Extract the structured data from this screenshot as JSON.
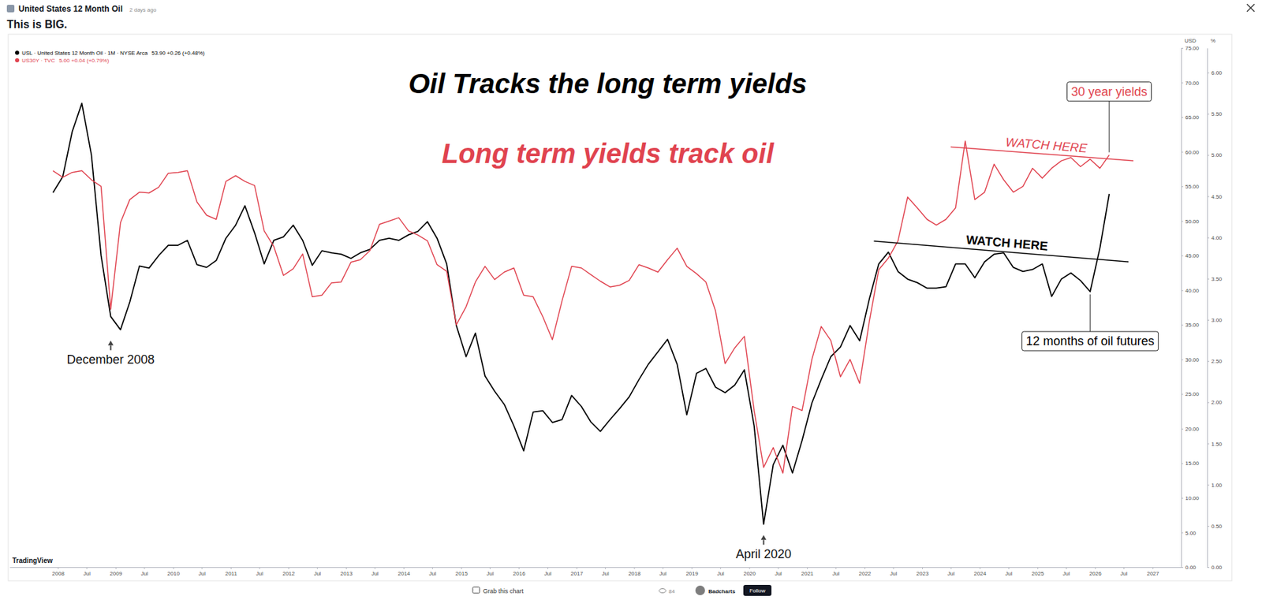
{
  "page": {
    "source": "United States 12 Month Oil",
    "age": "2 days ago",
    "post_title": "This is BIG.",
    "watermark": "TradingView",
    "toolbar_action": "Grab this chart",
    "views": 84,
    "author": "Badcharts",
    "follow": "Follow"
  },
  "chart_data": {
    "type": "line",
    "title": "Oil Tracks the long term yields",
    "subtitle": "Long term yields track oil",
    "x": [
      "2007-12",
      "2008-02",
      "2008-04",
      "2008-06",
      "2008-08",
      "2008-10",
      "2008-12",
      "2009-02",
      "2009-04",
      "2009-06",
      "2009-08",
      "2009-10",
      "2009-12",
      "2010-02",
      "2010-04",
      "2010-06",
      "2010-08",
      "2010-10",
      "2010-12",
      "2011-02",
      "2011-04",
      "2011-06",
      "2011-08",
      "2011-10",
      "2011-12",
      "2012-02",
      "2012-04",
      "2012-06",
      "2012-08",
      "2012-10",
      "2012-12",
      "2013-02",
      "2013-04",
      "2013-06",
      "2013-08",
      "2013-10",
      "2013-12",
      "2014-02",
      "2014-04",
      "2014-06",
      "2014-08",
      "2014-10",
      "2014-12",
      "2015-02",
      "2015-04",
      "2015-06",
      "2015-08",
      "2015-10",
      "2015-12",
      "2016-02",
      "2016-04",
      "2016-06",
      "2016-08",
      "2016-10",
      "2016-12",
      "2017-02",
      "2017-04",
      "2017-06",
      "2017-08",
      "2017-10",
      "2017-12",
      "2018-02",
      "2018-04",
      "2018-06",
      "2018-08",
      "2018-10",
      "2018-12",
      "2019-02",
      "2019-04",
      "2019-06",
      "2019-08",
      "2019-10",
      "2019-12",
      "2020-02",
      "2020-04",
      "2020-06",
      "2020-08",
      "2020-10",
      "2020-12",
      "2021-02",
      "2021-04",
      "2021-06",
      "2021-08",
      "2021-10",
      "2021-12",
      "2022-02",
      "2022-04",
      "2022-06",
      "2022-08",
      "2022-10",
      "2022-12",
      "2023-02",
      "2023-04",
      "2023-06",
      "2023-08",
      "2023-10",
      "2023-12",
      "2024-02",
      "2024-04",
      "2024-06",
      "2024-08",
      "2024-10",
      "2024-12",
      "2025-02",
      "2025-04",
      "2025-06",
      "2025-08",
      "2025-10",
      "2025-12",
      "2026-02",
      "2026-04"
    ],
    "series": [
      {
        "name": "USL · United States 12 Month Oil · 1M · NYSE Arca",
        "quote": "53.90 +0.26 (+0.48%)",
        "color": "#000000",
        "values": [
          54.1,
          56.4,
          62.9,
          67.0,
          59.5,
          45.0,
          36.2,
          34.3,
          38.3,
          43.5,
          43.2,
          45.0,
          46.5,
          46.5,
          47.2,
          43.7,
          43.3,
          44.3,
          47.5,
          49.4,
          52.2,
          48.3,
          43.8,
          47.2,
          47.7,
          49.4,
          47.2,
          43.6,
          45.7,
          45.4,
          45.2,
          44.6,
          45.4,
          45.9,
          47.2,
          47.5,
          47.2,
          48.0,
          48.5,
          49.9,
          47.5,
          43.8,
          34.9,
          30.4,
          33.8,
          27.6,
          25.4,
          23.5,
          20.4,
          16.8,
          22.4,
          22.6,
          20.9,
          21.3,
          24.8,
          23.2,
          21.0,
          19.6,
          21.3,
          22.9,
          24.6,
          27.1,
          29.3,
          31.1,
          32.9,
          29.3,
          22.0,
          28.0,
          28.7,
          26.0,
          25.2,
          26.3,
          28.5,
          20.4,
          6.2,
          14.8,
          17.6,
          13.6,
          18.3,
          23.7,
          27.1,
          30.4,
          31.8,
          34.9,
          32.7,
          38.8,
          43.8,
          45.5,
          42.7,
          41.6,
          41.1,
          40.3,
          40.3,
          40.5,
          43.8,
          43.8,
          41.8,
          44.1,
          45.2,
          45.4,
          43.3,
          42.7,
          43.0,
          43.8,
          39.1,
          41.6,
          42.5,
          41.4,
          39.8,
          46.1,
          53.9
        ]
      },
      {
        "name": "US30Y · TVC",
        "quote": "5.00 +0.04 (+0.79%)",
        "color": "#e0434f",
        "axis": "y2",
        "values": [
          4.81,
          4.73,
          4.79,
          4.81,
          4.7,
          4.62,
          3.13,
          4.18,
          4.46,
          4.55,
          4.54,
          4.61,
          4.78,
          4.79,
          4.81,
          4.43,
          4.27,
          4.22,
          4.68,
          4.75,
          4.68,
          4.63,
          4.08,
          3.89,
          3.54,
          3.62,
          3.8,
          3.28,
          3.3,
          3.45,
          3.46,
          3.7,
          3.73,
          3.84,
          4.16,
          4.2,
          4.24,
          4.08,
          4.03,
          3.96,
          3.67,
          3.59,
          2.94,
          3.16,
          3.46,
          3.65,
          3.49,
          3.58,
          3.63,
          3.3,
          3.28,
          3.04,
          2.76,
          3.23,
          3.65,
          3.63,
          3.55,
          3.47,
          3.4,
          3.42,
          3.48,
          3.67,
          3.63,
          3.58,
          3.73,
          3.87,
          3.65,
          3.56,
          3.46,
          3.11,
          2.47,
          2.66,
          2.8,
          1.9,
          1.21,
          1.45,
          1.14,
          1.95,
          1.9,
          2.52,
          2.92,
          2.75,
          2.31,
          2.52,
          2.23,
          2.99,
          3.61,
          3.75,
          3.96,
          4.49,
          4.36,
          4.22,
          4.15,
          4.22,
          4.36,
          5.17,
          4.46,
          4.55,
          4.89,
          4.7,
          4.55,
          4.62,
          4.84,
          4.72,
          4.84,
          4.93,
          4.97,
          4.86,
          4.95,
          4.84,
          5.0
        ]
      }
    ],
    "xlim": [
      "2007-03",
      "2027-07"
    ],
    "xticks": [
      {
        "value": "2008-01",
        "label": "2008"
      },
      {
        "value": "2008-07",
        "label": "Jul"
      },
      {
        "value": "2009-01",
        "label": "2009"
      },
      {
        "value": "2009-07",
        "label": "Jul"
      },
      {
        "value": "2010-01",
        "label": "2010"
      },
      {
        "value": "2010-07",
        "label": "Jul"
      },
      {
        "value": "2011-01",
        "label": "2011"
      },
      {
        "value": "2011-07",
        "label": "Jul"
      },
      {
        "value": "2012-01",
        "label": "2012"
      },
      {
        "value": "2012-07",
        "label": "Jul"
      },
      {
        "value": "2013-01",
        "label": "2013"
      },
      {
        "value": "2013-07",
        "label": "Jul"
      },
      {
        "value": "2014-01",
        "label": "2014"
      },
      {
        "value": "2014-07",
        "label": "Jul"
      },
      {
        "value": "2015-01",
        "label": "2015"
      },
      {
        "value": "2015-07",
        "label": "Jul"
      },
      {
        "value": "2016-01",
        "label": "2016"
      },
      {
        "value": "2016-07",
        "label": "Jul"
      },
      {
        "value": "2017-01",
        "label": "2017"
      },
      {
        "value": "2017-07",
        "label": "Jul"
      },
      {
        "value": "2018-01",
        "label": "2018"
      },
      {
        "value": "2018-07",
        "label": "Jul"
      },
      {
        "value": "2019-01",
        "label": "2019"
      },
      {
        "value": "2019-07",
        "label": "Jul"
      },
      {
        "value": "2020-01",
        "label": "2020"
      },
      {
        "value": "2020-07",
        "label": "Jul"
      },
      {
        "value": "2021-01",
        "label": "2021"
      },
      {
        "value": "2021-07",
        "label": "Jul"
      },
      {
        "value": "2022-01",
        "label": "2022"
      },
      {
        "value": "2022-07",
        "label": "Jul"
      },
      {
        "value": "2023-01",
        "label": "2023"
      },
      {
        "value": "2023-07",
        "label": "Jul"
      },
      {
        "value": "2024-01",
        "label": "2024"
      },
      {
        "value": "2024-07",
        "label": "Jul"
      },
      {
        "value": "2025-01",
        "label": "2025"
      },
      {
        "value": "2025-07",
        "label": "Jul"
      },
      {
        "value": "2026-01",
        "label": "2026"
      },
      {
        "value": "2026-07",
        "label": "Jul"
      },
      {
        "value": "2027-01",
        "label": "2027"
      }
    ],
    "ylim": [
      0,
      75
    ],
    "yticks": [
      {
        "value": 0,
        "label": "0.00"
      },
      {
        "value": 5,
        "label": "5.00"
      },
      {
        "value": 10,
        "label": "10.00"
      },
      {
        "value": 15,
        "label": "15.00"
      },
      {
        "value": 20,
        "label": "20.00"
      },
      {
        "value": 25,
        "label": "25.00"
      },
      {
        "value": 30,
        "label": "30.00"
      },
      {
        "value": 35,
        "label": "35.00"
      },
      {
        "value": 40,
        "label": "40.00"
      },
      {
        "value": 45,
        "label": "45.00"
      },
      {
        "value": 50,
        "label": "50.00"
      },
      {
        "value": 55,
        "label": "55.00"
      },
      {
        "value": 60,
        "label": "60.00"
      },
      {
        "value": 65,
        "label": "65.00"
      },
      {
        "value": 70,
        "label": "70.00"
      },
      {
        "value": 75,
        "label": "75.00"
      }
    ],
    "y_label": "USD",
    "y2lim": [
      0,
      6.3
    ],
    "y2ticks": [
      {
        "value": 0,
        "label": "0.00"
      },
      {
        "value": 0.5,
        "label": "0.50"
      },
      {
        "value": 1,
        "label": "1.00"
      },
      {
        "value": 1.5,
        "label": "1.50"
      },
      {
        "value": 2,
        "label": "2.00"
      },
      {
        "value": 2.5,
        "label": "2.50"
      },
      {
        "value": 3,
        "label": "3.00"
      },
      {
        "value": 3.5,
        "label": "3.50"
      },
      {
        "value": 4,
        "label": "4.00"
      },
      {
        "value": 4.5,
        "label": "4.50"
      },
      {
        "value": 5,
        "label": "5.00"
      },
      {
        "value": 5.5,
        "label": "5.50"
      },
      {
        "value": 6,
        "label": "6.00"
      }
    ],
    "y2_label": "%",
    "grid": false,
    "legend": "top-left",
    "annotations": [
      {
        "text": "December 2008",
        "x": "2008-12",
        "series": 0
      },
      {
        "text": "April 2020",
        "x": "2020-04",
        "series": 0
      }
    ],
    "callouts": [
      {
        "text": "30 year yields",
        "x": "2026-04",
        "series": 1,
        "position": "above"
      },
      {
        "text": "12 months of oil futures",
        "x": "2025-12",
        "series": 0,
        "position": "below"
      }
    ],
    "trendlines": [
      {
        "text": "WATCH HERE",
        "series": 1,
        "x": [
          "2023-07",
          "2026-09"
        ],
        "values": [
          5.1,
          4.93
        ]
      },
      {
        "text": "WATCH HERE",
        "series": 0,
        "x": [
          "2022-03",
          "2026-08"
        ],
        "values": [
          47.1,
          44.1
        ]
      }
    ]
  }
}
